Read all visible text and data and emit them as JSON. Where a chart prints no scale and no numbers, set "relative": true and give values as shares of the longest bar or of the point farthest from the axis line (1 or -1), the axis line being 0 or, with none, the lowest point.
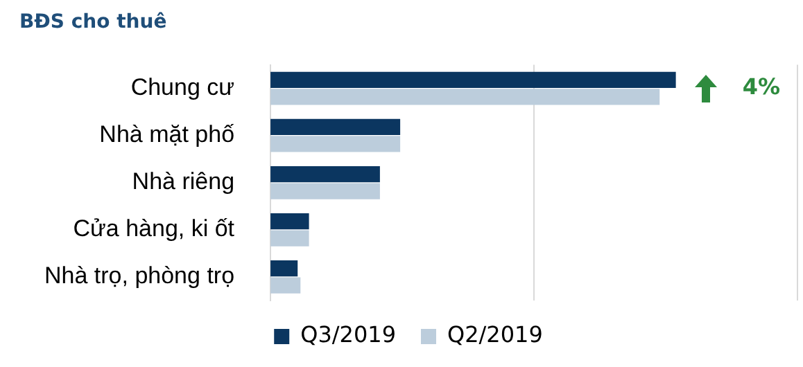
{
  "chart_data": {
    "type": "bar",
    "orientation": "horizontal",
    "relative": true,
    "title": "BĐS cho thuê",
    "categories": [
      "Chung cư",
      "Nhà mặt phố",
      "Nhà riêng",
      "Cửa hàng, ki ốt",
      "Nhà trọ, phòng trọ"
    ],
    "series": [
      {
        "name": "Q3/2019",
        "color": "#0b3660",
        "values": [
          1,
          0.32,
          0.27,
          0.095,
          0.067
        ]
      },
      {
        "name": "Q2/2019",
        "color": "#bccddc",
        "values": [
          0.96,
          0.32,
          0.27,
          0.095,
          0.074
        ]
      }
    ],
    "annotations": [
      "4%"
    ],
    "ref_lines": [
      {
        "axis": "x",
        "value": 0.65,
        "color": "#d9d9d9"
      },
      {
        "axis": "x",
        "value": 1.3,
        "color": "#d9d9d9"
      }
    ],
    "legend": "bottom"
  }
}
